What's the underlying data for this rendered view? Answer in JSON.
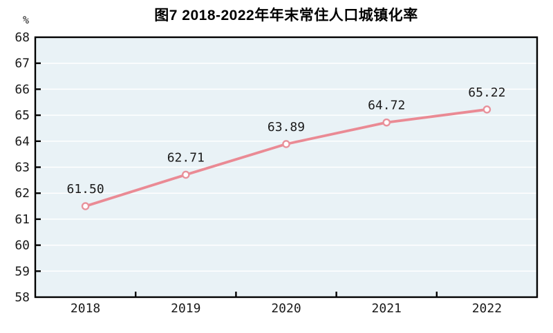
{
  "chart_data": {
    "type": "line",
    "title": "图7  2018-2022年年末常住人口城镇化率",
    "y_unit": "%",
    "categories": [
      "2018",
      "2019",
      "2020",
      "2021",
      "2022"
    ],
    "series": [
      {
        "name": "年末常住人口城镇化率",
        "values": [
          61.5,
          62.71,
          63.89,
          64.72,
          65.22
        ],
        "labels": [
          "61.50",
          "62.71",
          "63.89",
          "64.72",
          "65.22"
        ]
      }
    ],
    "xlabel": "",
    "ylabel": "%",
    "ylim": [
      58,
      68
    ],
    "y_tick_step": 1,
    "grid": "horizontal-white",
    "legend_position": "none",
    "colors": {
      "line": "#ea8a94",
      "marker_fill": "#ffffff",
      "marker_stroke": "#e8919b",
      "plot_bg": "#e9f2f6",
      "grid": "#ffffff",
      "axis": "#000000",
      "text": "#1a1a1a"
    }
  }
}
